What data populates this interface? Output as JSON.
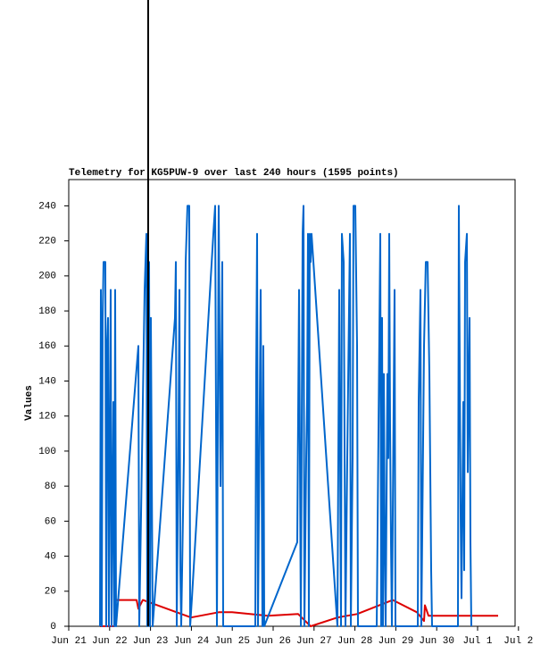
{
  "chart_data": {
    "type": "line",
    "title": "Telemetry for KG5PUW-9 over last 240 hours (1595 points)",
    "y_label": "Values",
    "xlim": [
      0,
      10.917
    ],
    "xticks": [
      {
        "value": 0,
        "label": "Jun 21"
      },
      {
        "value": 1,
        "label": "Jun 22"
      },
      {
        "value": 2,
        "label": "Jun 23"
      },
      {
        "value": 3,
        "label": "Jun 24"
      },
      {
        "value": 4,
        "label": "Jun 25"
      },
      {
        "value": 5,
        "label": "Jun 26"
      },
      {
        "value": 6,
        "label": "Jun 27"
      },
      {
        "value": 7,
        "label": "Jun 28"
      },
      {
        "value": 8,
        "label": "Jun 29"
      },
      {
        "value": 9,
        "label": "Jun 30"
      },
      {
        "value": 10,
        "label": "Jul 1"
      },
      {
        "value": 11,
        "label": "Jul 2"
      }
    ],
    "ylim": [
      0,
      255
    ],
    "yticks": [
      0,
      20,
      40,
      60,
      80,
      100,
      120,
      140,
      160,
      180,
      200,
      220,
      240
    ],
    "series": [
      {
        "color": "#0066cc",
        "x": [
          0.764,
          0.786,
          0.808,
          0.83,
          0.852,
          0.895,
          0.917,
          0.939,
          0.961,
          0.983,
          1.026,
          1.048,
          1.092,
          1.114,
          1.135,
          1.157,
          1.703,
          1.725,
          1.856,
          1.9,
          1.921,
          1.965,
          1.987,
          2.009,
          2.052,
          2.598,
          2.62,
          2.642,
          2.686,
          2.707,
          2.729,
          2.751,
          2.817,
          2.86,
          2.904,
          2.948,
          2.969,
          3.013,
          3.537,
          3.581,
          3.624,
          3.668,
          3.712,
          3.755,
          3.777,
          4.563,
          4.585,
          4.607,
          4.629,
          4.694,
          4.738,
          4.76,
          4.782,
          5.59,
          5.633,
          5.677,
          5.721,
          5.742,
          5.764,
          5.808,
          5.83,
          5.852,
          5.873,
          5.895,
          5.917,
          5.939,
          6.572,
          6.616,
          6.659,
          6.681,
          6.725,
          6.769,
          6.812,
          6.878,
          6.9,
          6.943,
          6.965,
          7.009,
          7.052,
          7.074,
          7.533,
          7.576,
          7.62,
          7.642,
          7.664,
          7.686,
          7.707,
          7.729,
          7.751,
          7.795,
          7.817,
          7.838,
          7.86,
          7.882,
          7.904,
          7.969,
          7.991,
          8.537,
          8.559,
          8.603,
          8.624,
          8.69,
          8.734,
          8.777,
          8.821,
          8.865,
          8.886,
          9.52,
          9.541,
          9.585,
          9.607,
          9.651,
          9.672,
          9.694,
          9.738,
          9.76,
          9.803,
          9.825,
          9.847
        ],
        "values": [
          0,
          192,
          0,
          176,
          208,
          208,
          0,
          160,
          176,
          0,
          192,
          0,
          128,
          0,
          192,
          0,
          160,
          0,
          192,
          224,
          0,
          208,
          0,
          176,
          0,
          176,
          208,
          0,
          112,
          192,
          32,
          0,
          96,
          208,
          240,
          240,
          0,
          16,
          224,
          240,
          0,
          240,
          80,
          208,
          0,
          0,
          144,
          224,
          0,
          192,
          0,
          160,
          0,
          48,
          192,
          0,
          224,
          240,
          0,
          96,
          128,
          224,
          0,
          224,
          208,
          224,
          0,
          192,
          0,
          224,
          208,
          0,
          96,
          224,
          0,
          96,
          240,
          240,
          160,
          0,
          0,
          112,
          224,
          0,
          176,
          0,
          144,
          48,
          0,
          144,
          96,
          224,
          112,
          48,
          0,
          192,
          0,
          0,
          128,
          192,
          0,
          160,
          208,
          208,
          144,
          32,
          0,
          0,
          240,
          64,
          16,
          128,
          32,
          208,
          224,
          88,
          176,
          48,
          0
        ]
      },
      {
        "color": "#dd0000",
        "x": [
          0.764,
          1.114,
          1.135,
          1.659,
          1.703,
          1.812,
          2.991,
          3.668,
          3.996,
          4.869,
          5.611,
          5.917,
          6.572,
          7.052,
          7.926,
          8.515,
          8.69,
          8.712,
          8.799,
          10.502
        ],
        "values": [
          0,
          0,
          15,
          15,
          10,
          15,
          5,
          8,
          8,
          6,
          7,
          0,
          5,
          7,
          15,
          8,
          3,
          12,
          6,
          6
        ]
      }
    ]
  }
}
